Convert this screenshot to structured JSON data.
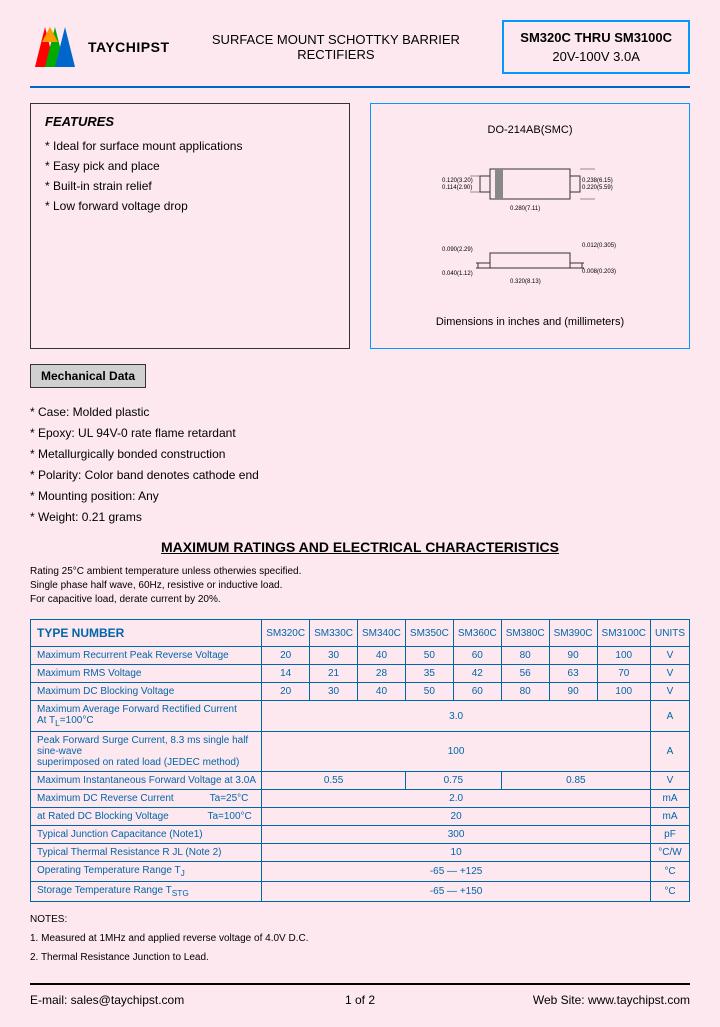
{
  "company": "TAYCHIPST",
  "title": "SURFACE MOUNT SCHOTTKY BARRIER RECTIFIERS",
  "partbox": {
    "top": "SM320C  THRU  SM3100C",
    "bot": "20V-100V    3.0A"
  },
  "logo_colors": {
    "t1": "#ff0000",
    "t2": "#ff9900",
    "t3": "#00aa00",
    "t4": "#0066cc"
  },
  "features": {
    "hdr": "FEATURES",
    "items": [
      "Ideal for surface mount applications",
      "Easy pick and place",
      "Built-in strain relief",
      "Low forward voltage drop"
    ]
  },
  "diagram": {
    "part": "DO-214AB(SMC)",
    "caption": "Dimensions in inches and (millimeters)"
  },
  "mech": {
    "hdr": "Mechanical Data",
    "items": [
      "Case: Molded plastic",
      "Epoxy: UL 94V-0 rate flame retardant",
      "Metallurgically bonded construction",
      "Polarity: Color band denotes cathode end",
      "Mounting position: Any",
      "Weight: 0.21 grams"
    ]
  },
  "max_hdr": "MAXIMUM RATINGS AND ELECTRICAL CHARACTERISTICS",
  "rating_notes": "Rating 25°C ambient temperature unless otherwies specified.\nSingle phase half wave, 60Hz, resistive or inductive load.\nFor capacitive load, derate current by 20%.",
  "table": {
    "type_hdr": "TYPE NUMBER",
    "cols": [
      "SM320C",
      "SM330C",
      "SM340C",
      "SM350C",
      "SM360C",
      "SM380C",
      "SM390C",
      "SM3100C",
      "UNITS"
    ],
    "rows": [
      {
        "label": "Maximum Recurrent Peak Reverse Voltage",
        "cells": [
          "20",
          "30",
          "40",
          "50",
          "60",
          "80",
          "90",
          "100",
          "V"
        ]
      },
      {
        "label": "Maximum RMS Voltage",
        "cells": [
          "14",
          "21",
          "28",
          "35",
          "42",
          "56",
          "63",
          "70",
          "V"
        ]
      },
      {
        "label": "Maximum DC Blocking Voltage",
        "cells": [
          "20",
          "30",
          "40",
          "50",
          "60",
          "80",
          "90",
          "100",
          "V"
        ]
      },
      {
        "label": "Maximum Average Forward Rectified Current<br>At T<sub>L</sub>=100°C",
        "span": "3.0",
        "unit": "A"
      },
      {
        "label": "Peak Forward Surge Current, 8.3 ms single half sine-wave<br>superimposed on rated load (JEDEC method)",
        "span": "100",
        "unit": "A"
      },
      {
        "label": "Maximum Instantaneous Forward Voltage at 3.0A",
        "cells3": [
          "0.55",
          "0.75",
          "0.85"
        ],
        "unit": "V"
      },
      {
        "label": "Maximum DC Reverse Current &nbsp;&nbsp;&nbsp;&nbsp;&nbsp;&nbsp;&nbsp;&nbsp;&nbsp;&nbsp;&nbsp; Ta=25°C",
        "span": "2.0",
        "unit": "mA"
      },
      {
        "label": "at Rated DC Blocking Voltage &nbsp;&nbsp;&nbsp;&nbsp;&nbsp;&nbsp;&nbsp;&nbsp;&nbsp;&nbsp;&nbsp;&nbsp; Ta=100°C",
        "span": "20",
        "unit": "mA"
      },
      {
        "label": "Typical Junction Capacitance (Note1)",
        "span": "300",
        "unit": "pF"
      },
      {
        "label": "Typical Thermal Resistance R JL (Note 2)",
        "span": "10",
        "unit": "°C/W"
      },
      {
        "label": "Operating Temperature Range T<sub>J</sub>",
        "span": "-65 — +125",
        "unit": "°C"
      },
      {
        "label": "Storage Temperature Range T<sub>STG</sub>",
        "span": "-65 — +150",
        "unit": "°C"
      }
    ]
  },
  "notes": {
    "hdr": "NOTES:",
    "items": [
      "1. Measured at 1MHz and applied reverse voltage of 4.0V D.C.",
      "2. Thermal Resistance Junction to Lead."
    ]
  },
  "footer": {
    "email": "E-mail: sales@taychipst.com",
    "page": "1  of   2",
    "web": "Web Site: www.taychipst.com"
  }
}
